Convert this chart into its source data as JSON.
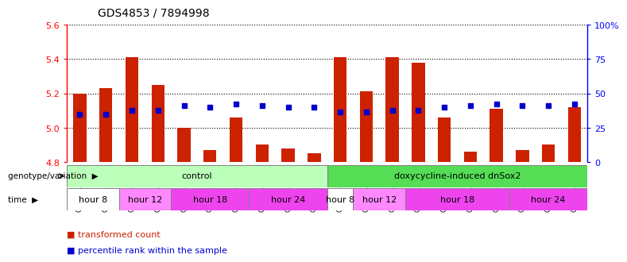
{
  "title": "GDS4853 / 7894998",
  "samples": [
    "GSM1053570",
    "GSM1053571",
    "GSM1053572",
    "GSM1053573",
    "GSM1053574",
    "GSM1053575",
    "GSM1053576",
    "GSM1053577",
    "GSM1053578",
    "GSM1053579",
    "GSM1053580",
    "GSM1053581",
    "GSM1053582",
    "GSM1053583",
    "GSM1053584",
    "GSM1053585",
    "GSM1053586",
    "GSM1053587",
    "GSM1053588",
    "GSM1053589"
  ],
  "red_values": [
    5.2,
    5.23,
    5.41,
    5.25,
    5.0,
    4.87,
    5.06,
    4.9,
    4.88,
    4.85,
    5.41,
    5.21,
    5.41,
    5.38,
    5.06,
    4.86,
    5.11,
    4.87,
    4.9,
    5.12
  ],
  "blue_values": [
    5.08,
    5.08,
    5.1,
    5.1,
    5.13,
    5.12,
    5.14,
    5.13,
    5.12,
    5.12,
    5.09,
    5.09,
    5.1,
    5.1,
    5.12,
    5.13,
    5.14,
    5.13,
    5.13,
    5.14
  ],
  "ymin": 4.8,
  "ymax": 5.6,
  "yticks_left": [
    4.8,
    5.0,
    5.2,
    5.4,
    5.6
  ],
  "yticks_right": [
    0,
    25,
    50,
    75,
    100
  ],
  "yticks_right_labels": [
    "0",
    "25",
    "50",
    "75",
    "100%"
  ],
  "bar_color": "#cc2200",
  "dot_color": "#0000cc",
  "genotype_groups": [
    {
      "label": "control",
      "start": 0,
      "end": 10,
      "color": "#bbffbb"
    },
    {
      "label": "doxycycline-induced dnSox2",
      "start": 10,
      "end": 20,
      "color": "#55dd55"
    }
  ],
  "time_groups": [
    {
      "label": "hour 8",
      "start": 0,
      "end": 2,
      "color": "#ffffff"
    },
    {
      "label": "hour 12",
      "start": 2,
      "end": 4,
      "color": "#ff88ff"
    },
    {
      "label": "hour 18",
      "start": 4,
      "end": 7,
      "color": "#ee44ee"
    },
    {
      "label": "hour 24",
      "start": 7,
      "end": 10,
      "color": "#ee44ee"
    },
    {
      "label": "hour 8",
      "start": 10,
      "end": 11,
      "color": "#ffffff"
    },
    {
      "label": "hour 12",
      "start": 11,
      "end": 13,
      "color": "#ff88ff"
    },
    {
      "label": "hour 18",
      "start": 13,
      "end": 17,
      "color": "#ee44ee"
    },
    {
      "label": "hour 24",
      "start": 17,
      "end": 20,
      "color": "#ee44ee"
    }
  ],
  "legend_items": [
    {
      "label": "transformed count",
      "color": "#cc2200"
    },
    {
      "label": "percentile rank within the sample",
      "color": "#0000cc"
    }
  ],
  "label_left": "genotype/variation",
  "label_time": "time"
}
